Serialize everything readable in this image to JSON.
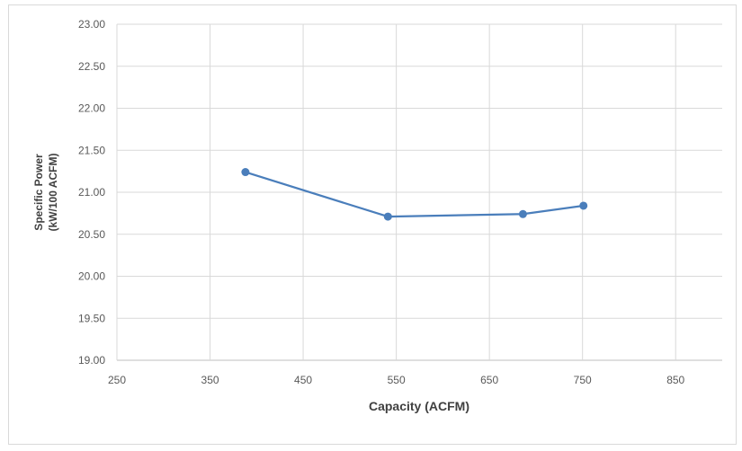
{
  "chart_data": {
    "type": "line",
    "title": "",
    "xlabel": "Capacity (ACFM)",
    "ylabel_lines": [
      "Specific Power",
      "(kW/100 ACFM)"
    ],
    "xlim": [
      250,
      900
    ],
    "ylim": [
      19.0,
      23.0
    ],
    "x_ticks": [
      "250",
      "350",
      "450",
      "550",
      "650",
      "750",
      "850"
    ],
    "y_ticks": [
      "19.00",
      "19.50",
      "20.00",
      "20.50",
      "21.00",
      "21.50",
      "22.00",
      "22.50",
      "23.00"
    ],
    "grid": true,
    "legend": "none",
    "series": [
      {
        "color": "#4a7ebb",
        "x": [
          388,
          541,
          686,
          751
        ],
        "y": [
          21.24,
          20.71,
          20.74,
          20.84
        ]
      }
    ]
  }
}
